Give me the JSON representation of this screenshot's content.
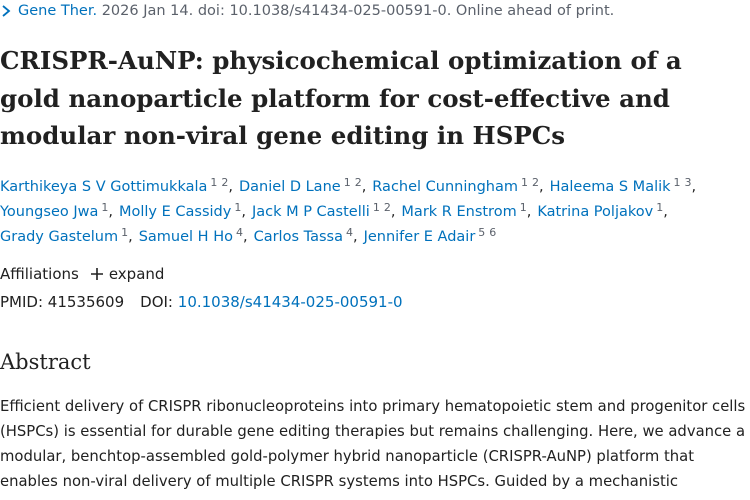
{
  "citation": {
    "journal": "Gene Ther.",
    "details": "2026 Jan 14. doi: 10.1038/s41434-025-00591-0. Online ahead of print."
  },
  "title_lines": [
    "CRISPR-AuNP: physicochemical optimization of a",
    "gold nanoparticle platform for cost-effective and",
    "modular non-viral gene editing in HSPCs"
  ],
  "author_rows": [
    [
      {
        "name": "Karthikeya S V Gottimukkala",
        "affiliations": [
          "1",
          "2"
        ]
      },
      {
        "name": "Daniel D Lane",
        "affiliations": [
          "1",
          "2"
        ]
      },
      {
        "name": "Rachel Cunningham",
        "affiliations": [
          "1",
          "2"
        ]
      },
      {
        "name": "Haleema S Malik",
        "affiliations": [
          "1",
          "3"
        ]
      }
    ],
    [
      {
        "name": "Youngseo Jwa",
        "affiliations": [
          "1"
        ]
      },
      {
        "name": "Molly E Cassidy",
        "affiliations": [
          "1"
        ]
      },
      {
        "name": "Jack M P Castelli",
        "affiliations": [
          "1",
          "2"
        ]
      },
      {
        "name": "Mark R Enstrom",
        "affiliations": [
          "1"
        ]
      },
      {
        "name": "Katrina Poljakov",
        "affiliations": [
          "1"
        ]
      }
    ],
    [
      {
        "name": "Grady Gastelum",
        "affiliations": [
          "1"
        ]
      },
      {
        "name": "Samuel H Ho",
        "affiliations": [
          "4"
        ]
      },
      {
        "name": "Carlos Tassa",
        "affiliations": [
          "4"
        ]
      },
      {
        "name": "Jennifer E Adair",
        "affiliations": [
          "5",
          "6"
        ]
      }
    ]
  ],
  "affiliations": {
    "label": "Affiliations",
    "toggle": "expand"
  },
  "identifiers": {
    "pmid_label": "PMID:",
    "pmid": "41535609",
    "doi_label": "DOI:",
    "doi": "10.1038/s41434-025-00591-0"
  },
  "abstract": {
    "heading": "Abstract",
    "lines": [
      "Efficient delivery of CRISPR ribonucleoproteins into primary hematopoietic stem and progenitor cells",
      "(HSPCs) is essential for durable gene editing therapies but remains challenging. Here, we advance a",
      "modular, benchtop-assembled gold-polymer hybrid nanoparticle (CRISPR-AuNP) platform that",
      "enables non-viral delivery of multiple CRISPR systems into HSPCs. Guided by a mechanistic"
    ]
  }
}
